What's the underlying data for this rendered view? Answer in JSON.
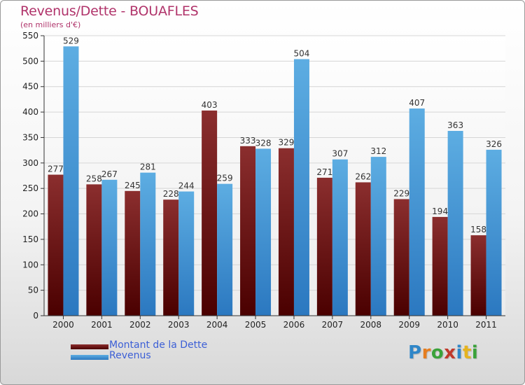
{
  "header": {
    "title": "Revenus/Dette - BOUAFLES",
    "subtitle": "(en milliers d'€)"
  },
  "legend": {
    "dette_label": "Montant de la Dette",
    "revenus_label": "Revenus"
  },
  "logo": {
    "text": "Proxiti",
    "letters": [
      {
        "ch": "P",
        "color": "#2f86c8"
      },
      {
        "ch": "r",
        "color": "#e57d1f"
      },
      {
        "ch": "o",
        "color": "#3aa23a"
      },
      {
        "ch": "x",
        "color": "#c0392b"
      },
      {
        "ch": "i",
        "color": "#2f86c8"
      },
      {
        "ch": "t",
        "color": "#e5b31f"
      },
      {
        "ch": "i",
        "color": "#3aa23a"
      }
    ]
  },
  "colors": {
    "dette_top": "#8b2e2e",
    "dette_bottom": "#4a0000",
    "revenus_top": "#5dade2",
    "revenus_bottom": "#2b78c0",
    "title": "#b0336a",
    "legend_text": "#3c5fd6"
  },
  "chart_data": {
    "type": "bar",
    "title": "Revenus/Dette - BOUAFLES",
    "subtitle": "(en milliers d'€)",
    "categories": [
      "2000",
      "2001",
      "2002",
      "2003",
      "2004",
      "2005",
      "2006",
      "2007",
      "2008",
      "2009",
      "2010",
      "2011"
    ],
    "series": [
      {
        "name": "Montant de la Dette",
        "values": [
          277,
          258,
          245,
          228,
          403,
          333,
          329,
          271,
          262,
          229,
          194,
          158
        ]
      },
      {
        "name": "Revenus",
        "values": [
          529,
          267,
          281,
          244,
          259,
          328,
          504,
          307,
          312,
          407,
          363,
          326
        ]
      }
    ],
    "ylim": [
      0,
      550
    ],
    "yticks": [
      0,
      50,
      100,
      150,
      200,
      250,
      300,
      350,
      400,
      450,
      500,
      550
    ],
    "grid": true,
    "legend_position": "bottom-left"
  }
}
